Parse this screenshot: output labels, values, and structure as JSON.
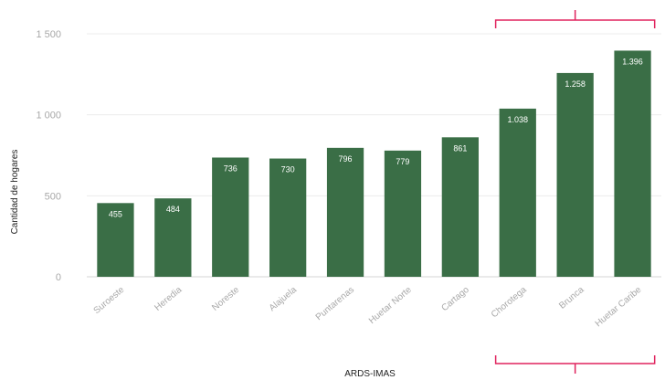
{
  "chart_data": {
    "type": "bar",
    "title": "",
    "xlabel": "ARDS-IMAS",
    "ylabel": "Cantidad de hogares",
    "categories": [
      "Suroeste",
      "Heredia",
      "Noreste",
      "Alajuela",
      "Puntarenas",
      "Huetar Norte",
      "Cartago",
      "Chorotega",
      "Brunca",
      "Huetar Caribe"
    ],
    "values": [
      455,
      484,
      736,
      730,
      796,
      779,
      861,
      1038,
      1258,
      1396
    ],
    "value_labels": [
      "455",
      "484",
      "736",
      "730",
      "796",
      "779",
      "861",
      "1.038",
      "1.258",
      "1.396"
    ],
    "ylim": [
      0,
      1500
    ],
    "yticks": [
      0,
      500,
      1000,
      1500
    ],
    "ytick_labels": [
      "0",
      "500",
      "1 000",
      "1 500"
    ],
    "grid": true,
    "legend": "none",
    "bar_color": "#3a6e46",
    "grid_color": "#ececec",
    "highlight_color": "#e0245e",
    "highlighted_categories": [
      "Chorotega",
      "Brunca",
      "Huetar Caribe"
    ]
  }
}
